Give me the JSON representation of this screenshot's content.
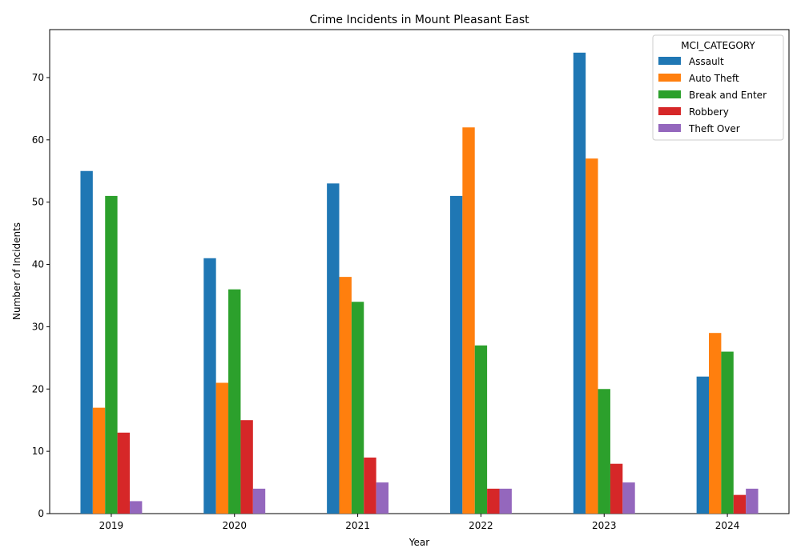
{
  "chart_data": {
    "type": "bar",
    "title": "Crime Incidents in Mount Pleasant East",
    "xlabel": "Year",
    "ylabel": "Number of Incidents",
    "categories": [
      "2019",
      "2020",
      "2021",
      "2022",
      "2023",
      "2024"
    ],
    "ylim": [
      0,
      77.7
    ],
    "yticks": [
      0,
      10,
      20,
      30,
      40,
      50,
      60,
      70
    ],
    "grid": false,
    "legend": {
      "title": "MCI_CATEGORY",
      "placement": "top-right"
    },
    "series": [
      {
        "name": "Assault",
        "color": "#1f77b4",
        "values": [
          55,
          41,
          53,
          51,
          74,
          22
        ]
      },
      {
        "name": "Auto Theft",
        "color": "#ff7f0e",
        "values": [
          17,
          21,
          38,
          62,
          57,
          29
        ]
      },
      {
        "name": "Break and Enter",
        "color": "#2ca02c",
        "values": [
          51,
          36,
          34,
          27,
          20,
          26
        ]
      },
      {
        "name": "Robbery",
        "color": "#d62728",
        "values": [
          13,
          15,
          9,
          4,
          8,
          3
        ]
      },
      {
        "name": "Theft Over",
        "color": "#9467bd",
        "values": [
          2,
          4,
          5,
          4,
          5,
          4
        ]
      }
    ]
  }
}
